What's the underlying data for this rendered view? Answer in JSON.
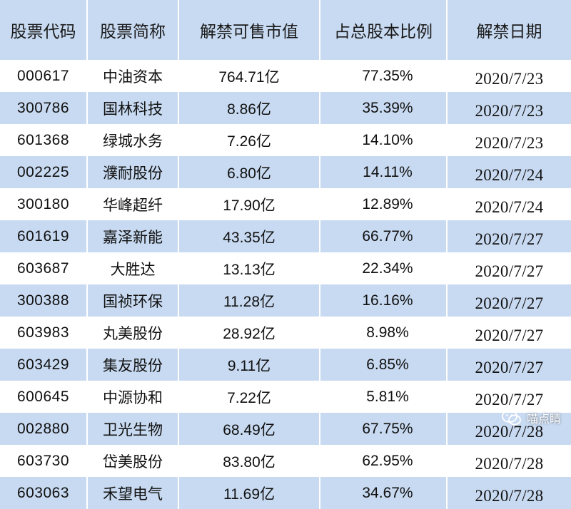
{
  "table": {
    "headers": [
      "股票代码",
      "股票简称",
      "解禁可售市值",
      "占总股本比例",
      "解禁日期"
    ],
    "rows": [
      {
        "code": "000617",
        "name": "中油资本",
        "value": "764.71亿",
        "ratio": "77.35%",
        "date": "2020/7/23"
      },
      {
        "code": "300786",
        "name": "国林科技",
        "value": "8.86亿",
        "ratio": "35.39%",
        "date": "2020/7/23"
      },
      {
        "code": "601368",
        "name": "绿城水务",
        "value": "7.26亿",
        "ratio": "14.10%",
        "date": "2020/7/23"
      },
      {
        "code": "002225",
        "name": "濮耐股份",
        "value": "6.80亿",
        "ratio": "14.11%",
        "date": "2020/7/24"
      },
      {
        "code": "300180",
        "name": "华峰超纤",
        "value": "17.90亿",
        "ratio": "12.89%",
        "date": "2020/7/24"
      },
      {
        "code": "601619",
        "name": "嘉泽新能",
        "value": "43.35亿",
        "ratio": "66.77%",
        "date": "2020/7/27"
      },
      {
        "code": "603687",
        "name": "大胜达",
        "value": "13.13亿",
        "ratio": "22.34%",
        "date": "2020/7/27"
      },
      {
        "code": "300388",
        "name": "国祯环保",
        "value": "11.28亿",
        "ratio": "16.16%",
        "date": "2020/7/27"
      },
      {
        "code": "603983",
        "name": "丸美股份",
        "value": "28.92亿",
        "ratio": "8.98%",
        "date": "2020/7/27"
      },
      {
        "code": "603429",
        "name": "集友股份",
        "value": "9.11亿",
        "ratio": "6.85%",
        "date": "2020/7/27"
      },
      {
        "code": "600645",
        "name": "中源协和",
        "value": "7.22亿",
        "ratio": "5.81%",
        "date": "2020/7/27"
      },
      {
        "code": "002880",
        "name": "卫光生物",
        "value": "68.49亿",
        "ratio": "67.75%",
        "date": "2020/7/28"
      },
      {
        "code": "603730",
        "name": "岱美股份",
        "value": "83.80亿",
        "ratio": "62.95%",
        "date": "2020/7/28"
      },
      {
        "code": "603063",
        "name": "禾望电气",
        "value": "11.69亿",
        "ratio": "34.67%",
        "date": "2020/7/28"
      }
    ]
  },
  "watermark": {
    "icon": "wechat-icon",
    "text": "喵点睛"
  },
  "colors": {
    "header_bg": "#c8daf1",
    "stripe_bg": "#c8daf1",
    "row_bg": "#ffffff"
  }
}
